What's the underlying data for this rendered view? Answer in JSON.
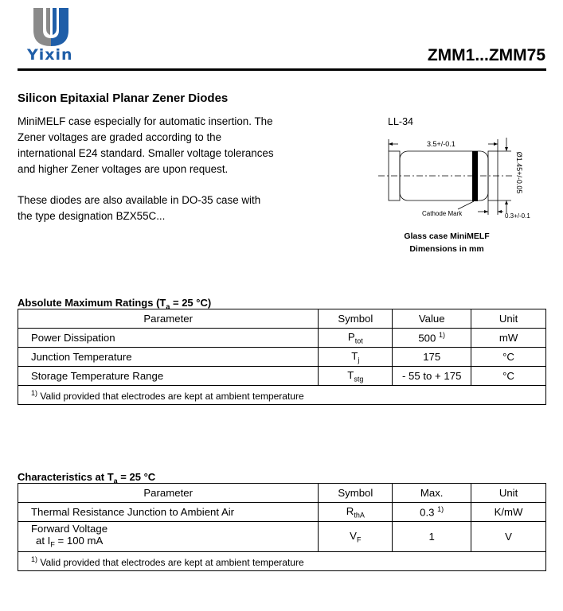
{
  "header": {
    "logo_text": "Yixin",
    "title": "ZMM1...ZMM75",
    "brand_colors": {
      "blue": "#1f5ea8",
      "grey": "#8a8a8a"
    }
  },
  "intro": {
    "heading": "Silicon Epitaxial Planar Zener Diodes",
    "para1": [
      "MiniMELF case especially for automatic insertion. The",
      "Zener voltages are graded according to the",
      "international E24 standard. Smaller voltage tolerances",
      "and higher Zener voltages are upon request."
    ],
    "para2": [
      "These diodes are also available in DO-35 case with",
      "the type designation BZX55C..."
    ]
  },
  "drawing": {
    "package": "LL-34",
    "dim_length": "3.5+/-0.1",
    "dim_diameter": "Ø1.45+/-0.05",
    "dim_cap": "0.3+/-0.1",
    "cathode_label": "Cathode Mark",
    "caption1": "Glass case MiniMELF",
    "caption2": "Dimensions in mm"
  },
  "abs_max": {
    "caption": "Absolute Maximum Ratings (T",
    "caption_sub": "a",
    "caption_end": " = 25 °C)",
    "headers": [
      "Parameter",
      "Symbol",
      "Value",
      "Unit"
    ],
    "rows": [
      {
        "param": "Power Dissipation",
        "sym": "P",
        "sym_sub": "tot",
        "value": "500",
        "value_sup": "1)",
        "unit": "mW"
      },
      {
        "param": "Junction Temperature",
        "sym": "T",
        "sym_sub": "j",
        "value": "175",
        "value_sup": "",
        "unit": "°C"
      },
      {
        "param": "Storage Temperature Range",
        "sym": "T",
        "sym_sub": "stg",
        "value": "- 55 to + 175",
        "value_sup": "",
        "unit": "°C"
      }
    ],
    "footnote_mark": "1)",
    "footnote": " Valid provided that electrodes are kept at ambient temperature"
  },
  "characteristics": {
    "caption": "Characteristics at T",
    "caption_sub": "a",
    "caption_end": " = 25 °C",
    "headers": [
      "Parameter",
      "Symbol",
      "Max.",
      "Unit"
    ],
    "rows": [
      {
        "param": "Thermal Resistance Junction to Ambient Air",
        "param2": "",
        "sym": "R",
        "sym_sub": "thA",
        "value": "0.3",
        "value_sup": "1)",
        "unit": "K/mW"
      },
      {
        "param": "Forward Voltage",
        "param2": "at I",
        "param2_sub": "F",
        "param2_end": " = 100 mA",
        "sym": "V",
        "sym_sub": "F",
        "value": "1",
        "value_sup": "",
        "unit": "V"
      }
    ],
    "footnote_mark": "1)",
    "footnote": " Valid provided that electrodes are kept at ambient temperature"
  }
}
